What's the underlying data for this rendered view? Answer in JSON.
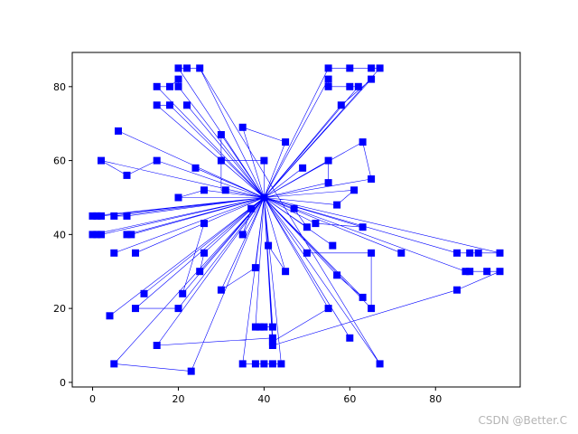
{
  "chart_data": {
    "type": "scatter",
    "title": "",
    "xlabel": "",
    "ylabel": "",
    "xlim": [
      -4.75,
      99.75
    ],
    "ylim": [
      -1.25,
      89.25
    ],
    "xticks": [
      0,
      20,
      40,
      60,
      80
    ],
    "yticks": [
      0,
      20,
      40,
      60,
      80
    ],
    "grid": false,
    "marker": "square",
    "color": "#0000ff",
    "points": [
      [
        20,
        85
      ],
      [
        22,
        85
      ],
      [
        25,
        85
      ],
      [
        55,
        85
      ],
      [
        60,
        85
      ],
      [
        65,
        85
      ],
      [
        67,
        85
      ],
      [
        15,
        80
      ],
      [
        18,
        80
      ],
      [
        20,
        80
      ],
      [
        20,
        82
      ],
      [
        55,
        80
      ],
      [
        55,
        82
      ],
      [
        60,
        80
      ],
      [
        62,
        80
      ],
      [
        65,
        82
      ],
      [
        15,
        75
      ],
      [
        18,
        75
      ],
      [
        22,
        75
      ],
      [
        58,
        75
      ],
      [
        6,
        68
      ],
      [
        35,
        69
      ],
      [
        30,
        67
      ],
      [
        45,
        65
      ],
      [
        63,
        65
      ],
      [
        2,
        60
      ],
      [
        15,
        60
      ],
      [
        30,
        60
      ],
      [
        40,
        60
      ],
      [
        55,
        60
      ],
      [
        8,
        56
      ],
      [
        24,
        58
      ],
      [
        49,
        58
      ],
      [
        65,
        55
      ],
      [
        55,
        54
      ],
      [
        20,
        50
      ],
      [
        26,
        52
      ],
      [
        31,
        52
      ],
      [
        61,
        52
      ],
      [
        40,
        50
      ],
      [
        57,
        48
      ],
      [
        37,
        47
      ],
      [
        47,
        47
      ],
      [
        0,
        45
      ],
      [
        1,
        45
      ],
      [
        2,
        45
      ],
      [
        5,
        45
      ],
      [
        8,
        45
      ],
      [
        26,
        43
      ],
      [
        52,
        43
      ],
      [
        63,
        42
      ],
      [
        50,
        42
      ],
      [
        0,
        40
      ],
      [
        1,
        40
      ],
      [
        2,
        40
      ],
      [
        8,
        40
      ],
      [
        9,
        40
      ],
      [
        35,
        40
      ],
      [
        41,
        37
      ],
      [
        56,
        37
      ],
      [
        5,
        35
      ],
      [
        10,
        35
      ],
      [
        26,
        35
      ],
      [
        50,
        35
      ],
      [
        65,
        35
      ],
      [
        72,
        35
      ],
      [
        85,
        35
      ],
      [
        88,
        35
      ],
      [
        90,
        35
      ],
      [
        95,
        35
      ],
      [
        38,
        31
      ],
      [
        25,
        30
      ],
      [
        45,
        30
      ],
      [
        57,
        29
      ],
      [
        87,
        30
      ],
      [
        88,
        30
      ],
      [
        92,
        30
      ],
      [
        95,
        30
      ],
      [
        30,
        25
      ],
      [
        85,
        25
      ],
      [
        12,
        24
      ],
      [
        21,
        24
      ],
      [
        63,
        23
      ],
      [
        10,
        20
      ],
      [
        20,
        20
      ],
      [
        55,
        20
      ],
      [
        65,
        20
      ],
      [
        4,
        18
      ],
      [
        38,
        15
      ],
      [
        39,
        15
      ],
      [
        40,
        15
      ],
      [
        42,
        15
      ],
      [
        15,
        10
      ],
      [
        42,
        12
      ],
      [
        42,
        11
      ],
      [
        42,
        10
      ],
      [
        60,
        12
      ],
      [
        5,
        5
      ],
      [
        23,
        3
      ],
      [
        35,
        5
      ],
      [
        38,
        5
      ],
      [
        40,
        5
      ],
      [
        42,
        5
      ],
      [
        44,
        5
      ],
      [
        67,
        5
      ]
    ],
    "route": [
      [
        40,
        50
      ],
      [
        20,
        85
      ],
      [
        22,
        85
      ],
      [
        25,
        85
      ],
      [
        40,
        50
      ],
      [
        55,
        85
      ],
      [
        60,
        85
      ],
      [
        65,
        85
      ],
      [
        67,
        85
      ],
      [
        40,
        50
      ],
      [
        15,
        80
      ],
      [
        18,
        80
      ],
      [
        20,
        82
      ],
      [
        20,
        80
      ],
      [
        40,
        50
      ],
      [
        55,
        82
      ],
      [
        55,
        80
      ],
      [
        60,
        80
      ],
      [
        62,
        80
      ],
      [
        40,
        50
      ],
      [
        15,
        75
      ],
      [
        18,
        75
      ],
      [
        40,
        50
      ],
      [
        22,
        75
      ],
      [
        40,
        50
      ],
      [
        65,
        82
      ],
      [
        58,
        75
      ],
      [
        40,
        50
      ],
      [
        6,
        68
      ],
      [
        40,
        50
      ],
      [
        35,
        69
      ],
      [
        45,
        65
      ],
      [
        40,
        50
      ],
      [
        30,
        67
      ],
      [
        30,
        52
      ],
      [
        40,
        50
      ],
      [
        63,
        65
      ],
      [
        65,
        55
      ],
      [
        40,
        50
      ],
      [
        2,
        60
      ],
      [
        8,
        56
      ],
      [
        15,
        60
      ],
      [
        40,
        50
      ],
      [
        30,
        60
      ],
      [
        40,
        60
      ],
      [
        40,
        50
      ],
      [
        55,
        60
      ],
      [
        55,
        54
      ],
      [
        40,
        50
      ],
      [
        24,
        58
      ],
      [
        40,
        50
      ],
      [
        49,
        58
      ],
      [
        40,
        50
      ],
      [
        61,
        52
      ],
      [
        57,
        48
      ],
      [
        40,
        50
      ],
      [
        20,
        50
      ],
      [
        26,
        52
      ],
      [
        40,
        50
      ],
      [
        47,
        47
      ],
      [
        50,
        42
      ],
      [
        40,
        50
      ],
      [
        37,
        47
      ],
      [
        35,
        40
      ],
      [
        40,
        50
      ],
      [
        0,
        45
      ],
      [
        1,
        45
      ],
      [
        2,
        45
      ],
      [
        40,
        50
      ],
      [
        5,
        45
      ],
      [
        8,
        45
      ],
      [
        40,
        50
      ],
      [
        26,
        43
      ],
      [
        21,
        24
      ],
      [
        40,
        50
      ],
      [
        52,
        43
      ],
      [
        63,
        42
      ],
      [
        40,
        50
      ],
      [
        0,
        40
      ],
      [
        1,
        40
      ],
      [
        2,
        40
      ],
      [
        40,
        50
      ],
      [
        8,
        40
      ],
      [
        9,
        40
      ],
      [
        40,
        50
      ],
      [
        41,
        37
      ],
      [
        45,
        30
      ],
      [
        40,
        50
      ],
      [
        56,
        37
      ],
      [
        40,
        50
      ],
      [
        5,
        35
      ],
      [
        40,
        50
      ],
      [
        10,
        35
      ],
      [
        40,
        50
      ],
      [
        26,
        35
      ],
      [
        25,
        30
      ],
      [
        40,
        50
      ],
      [
        50,
        35
      ],
      [
        65,
        35
      ],
      [
        65,
        20
      ],
      [
        40,
        50
      ],
      [
        72,
        35
      ],
      [
        40,
        50
      ],
      [
        85,
        35
      ],
      [
        88,
        35
      ],
      [
        90,
        35
      ],
      [
        95,
        35
      ],
      [
        40,
        50
      ],
      [
        38,
        31
      ],
      [
        30,
        25
      ],
      [
        40,
        50
      ],
      [
        57,
        29
      ],
      [
        63,
        23
      ],
      [
        40,
        50
      ],
      [
        12,
        24
      ],
      [
        40,
        50
      ],
      [
        87,
        30
      ],
      [
        88,
        30
      ],
      [
        92,
        30
      ],
      [
        95,
        30
      ],
      [
        85,
        25
      ],
      [
        42,
        10
      ],
      [
        40,
        50
      ],
      [
        10,
        20
      ],
      [
        20,
        20
      ],
      [
        40,
        50
      ],
      [
        55,
        20
      ],
      [
        42,
        11
      ],
      [
        40,
        50
      ],
      [
        4,
        18
      ],
      [
        40,
        50
      ],
      [
        38,
        15
      ],
      [
        39,
        15
      ],
      [
        40,
        15
      ],
      [
        42,
        15
      ],
      [
        40,
        50
      ],
      [
        15,
        10
      ],
      [
        42,
        12
      ],
      [
        40,
        50
      ],
      [
        60,
        12
      ],
      [
        40,
        50
      ],
      [
        5,
        5
      ],
      [
        23,
        3
      ],
      [
        40,
        50
      ],
      [
        35,
        5
      ],
      [
        38,
        5
      ],
      [
        40,
        5
      ],
      [
        42,
        5
      ],
      [
        44,
        5
      ],
      [
        40,
        50
      ],
      [
        67,
        5
      ],
      [
        25,
        85
      ]
    ]
  },
  "watermark": "CSDN @Better.C"
}
